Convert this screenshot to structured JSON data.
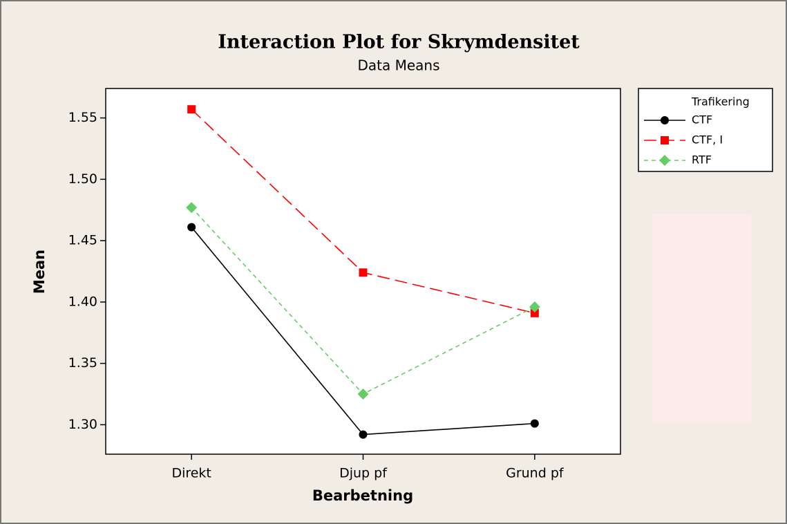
{
  "chart_data": {
    "type": "line",
    "title": "Interaction Plot for Skrymdensitet",
    "subtitle": "Data Means",
    "x_label": "Bearbetning",
    "y_label": "Mean",
    "legend_title": "Trafikering",
    "legend": "right",
    "categories": [
      "Direkt",
      "Djup pf",
      "Grund pf"
    ],
    "series": [
      {
        "name": "CTF",
        "color": "#000000",
        "marker": "circle",
        "dash": "solid",
        "values": [
          1.461,
          1.292,
          1.301
        ]
      },
      {
        "name": "CTF, I",
        "color": "#ff0000",
        "marker": "square",
        "dash": "long",
        "values": [
          1.557,
          1.424,
          1.391
        ]
      },
      {
        "name": "RTF",
        "color": "#66cc66",
        "marker": "diamond",
        "dash": "short",
        "values": [
          1.477,
          1.325,
          1.396
        ]
      }
    ],
    "ylim": [
      1.276,
      1.574
    ],
    "yticks": [
      {
        "value": 1.3,
        "label": "1.30"
      },
      1.35,
      {
        "value": 1.4,
        "label": "1.40"
      },
      1.45,
      {
        "value": 1.5,
        "label": "1.50"
      },
      1.55
    ]
  }
}
